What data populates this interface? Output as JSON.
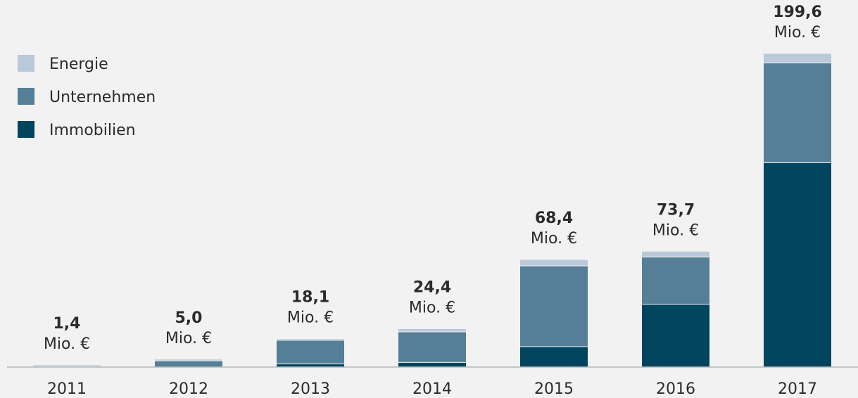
{
  "chart_data": {
    "type": "bar",
    "stacked": true,
    "categories": [
      "2011",
      "2012",
      "2013",
      "2014",
      "2015",
      "2016",
      "2017"
    ],
    "series": [
      {
        "name": "Immobilien",
        "color": "#00445e",
        "values": [
          0.0,
          0.0,
          2.0,
          3.0,
          13.0,
          40.0,
          130.0
        ]
      },
      {
        "name": "Unternehmen",
        "color": "#547f96",
        "values": [
          0.3,
          4.0,
          15.1,
          19.4,
          51.4,
          30.0,
          63.5
        ]
      },
      {
        "name": "Energie",
        "color": "#b9c9da",
        "values": [
          1.1,
          1.0,
          1.0,
          2.0,
          4.0,
          3.7,
          6.1
        ]
      }
    ],
    "totals": [
      "1,4",
      "5,0",
      "18,1",
      "24,4",
      "68,4",
      "73,7",
      "199,6"
    ],
    "total_unit": "Mio. €",
    "ylim": [
      0,
      200
    ],
    "legend_position": "top-left",
    "grid": false
  },
  "legend": [
    {
      "label": "Energie",
      "color": "#b9c9da"
    },
    {
      "label": "Unternehmen",
      "color": "#547f96"
    },
    {
      "label": "Immobilien",
      "color": "#00445e"
    }
  ],
  "colors": {
    "background": "#f2f2f2",
    "axis": "#b8b8b8",
    "text": "#2b2b2b"
  }
}
